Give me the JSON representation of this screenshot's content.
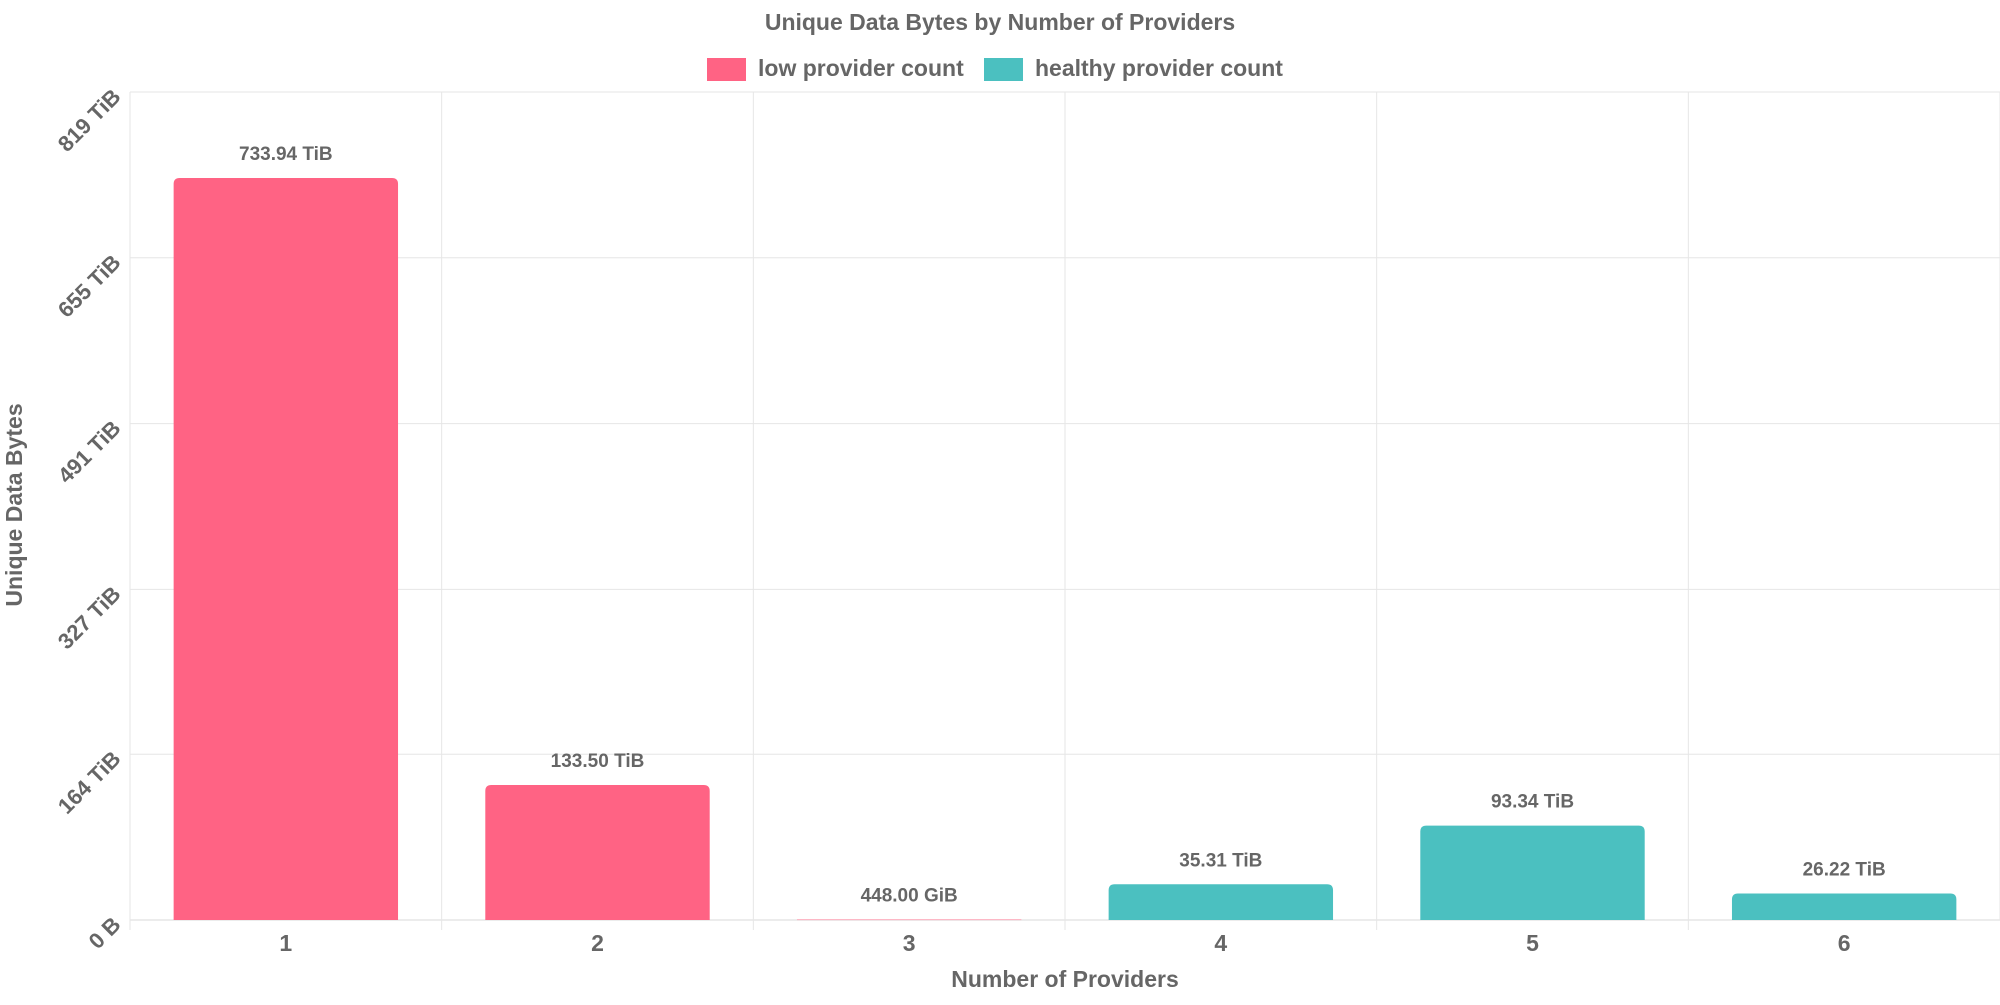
{
  "chart_data": {
    "type": "bar",
    "title": "Unique Data Bytes by Number of Providers",
    "xlabel": "Number of Providers",
    "ylabel": "Unique Data Bytes",
    "unit": "TiB",
    "categories": [
      "1",
      "2",
      "3",
      "4",
      "5",
      "6"
    ],
    "values": [
      733.94,
      133.5,
      0.4375,
      35.31,
      93.34,
      26.22
    ],
    "value_labels": [
      "733.94 TiB",
      "133.50 TiB",
      "448.00 GiB",
      "35.31 TiB",
      "93.34 TiB",
      "26.22 TiB"
    ],
    "series_index": [
      0,
      0,
      0,
      1,
      1,
      1
    ],
    "ylim": [
      0,
      819
    ],
    "yticks": [
      0,
      164,
      327,
      491,
      655,
      819
    ],
    "ytick_labels": [
      "0 B",
      "164 TiB",
      "327 TiB",
      "491 TiB",
      "655 TiB",
      "819 TiB"
    ],
    "grid": true,
    "legend_position": "top-center",
    "series": [
      {
        "name": "low provider count",
        "color": "#ff6384"
      },
      {
        "name": "healthy provider count",
        "color": "#4bc0c0"
      }
    ]
  }
}
